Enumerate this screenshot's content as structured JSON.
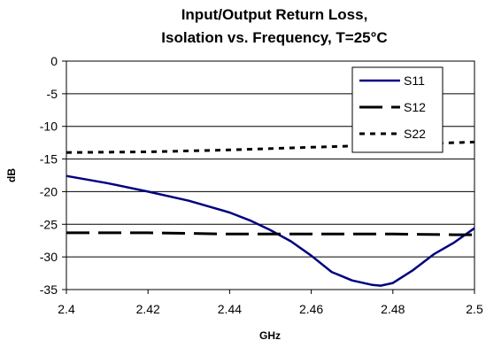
{
  "chart_data": {
    "type": "line",
    "title_line1": "Input/Output Return Loss,",
    "title_line2": "Isolation vs. Frequency, T=25°C",
    "xlabel": "GHz",
    "ylabel": "dB",
    "xlim": [
      2.4,
      2.5
    ],
    "ylim": [
      -35,
      0
    ],
    "xticks": [
      2.4,
      2.42,
      2.44,
      2.46,
      2.48,
      2.5
    ],
    "xtick_labels": [
      "2.4",
      "2.42",
      "2.44",
      "2.46",
      "2.48",
      "2.5"
    ],
    "yticks": [
      0,
      -5,
      -10,
      -15,
      -20,
      -25,
      -30,
      -35
    ],
    "ytick_labels": [
      "0",
      "-5",
      "-10",
      "-15",
      "-20",
      "-25",
      "-30",
      "-35"
    ],
    "grid": "horizontal",
    "legend_position": "top-right",
    "series": [
      {
        "name": "S11",
        "style": "solid",
        "color": "#000080",
        "x": [
          2.4,
          2.41,
          2.42,
          2.43,
          2.44,
          2.445,
          2.45,
          2.455,
          2.46,
          2.465,
          2.47,
          2.475,
          2.477,
          2.48,
          2.485,
          2.49,
          2.495,
          2.5
        ],
        "y": [
          -17.6,
          -18.7,
          -20.0,
          -21.4,
          -23.2,
          -24.4,
          -25.9,
          -27.6,
          -29.8,
          -32.3,
          -33.6,
          -34.3,
          -34.4,
          -34.0,
          -32.0,
          -29.6,
          -27.8,
          -25.6
        ]
      },
      {
        "name": "S12",
        "style": "dashed",
        "color": "#000000",
        "x": [
          2.4,
          2.42,
          2.44,
          2.46,
          2.48,
          2.495,
          2.5
        ],
        "y": [
          -26.3,
          -26.3,
          -26.5,
          -26.5,
          -26.5,
          -26.6,
          -26.6
        ]
      },
      {
        "name": "S22",
        "style": "dotted",
        "color": "#000000",
        "x": [
          2.4,
          2.42,
          2.44,
          2.46,
          2.48,
          2.5
        ],
        "y": [
          -14.0,
          -13.9,
          -13.6,
          -13.2,
          -12.8,
          -12.4
        ]
      }
    ]
  }
}
